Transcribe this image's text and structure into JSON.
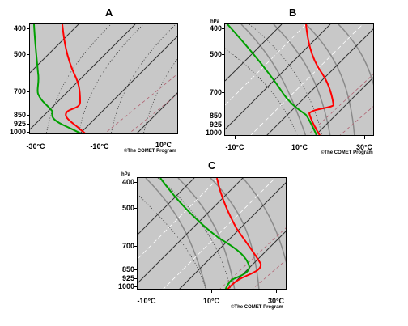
{
  "panels": [
    {
      "letter": "A",
      "pressure_unit": "",
      "pressure_labels": [
        "400",
        "500",
        "700",
        "850",
        "925",
        "1000"
      ],
      "temp_labels": [
        "-30°C",
        "-10°C",
        "10°C"
      ],
      "credit": "©The COMET Program"
    },
    {
      "letter": "B",
      "pressure_unit": "hPa",
      "pressure_labels": [
        "400",
        "500",
        "700",
        "850",
        "925",
        "1000"
      ],
      "temp_labels": [
        "-10°C",
        "10°C",
        "30°C"
      ],
      "credit": "©The COMET Program"
    },
    {
      "letter": "C",
      "pressure_unit": "hPa",
      "pressure_labels": [
        "400",
        "500",
        "700",
        "850",
        "925",
        "1000"
      ],
      "temp_labels": [
        "-10°C",
        "10°C",
        "30°C"
      ],
      "credit": "©The COMET Program"
    }
  ],
  "colors": {
    "temperature": "#ff0000",
    "dewpoint": "#00a000",
    "isotherm": "#333333",
    "dry_adiabat": "#8a8a8a",
    "mixing_ratio": "#ffffff",
    "background": "#c8c8c8"
  }
}
